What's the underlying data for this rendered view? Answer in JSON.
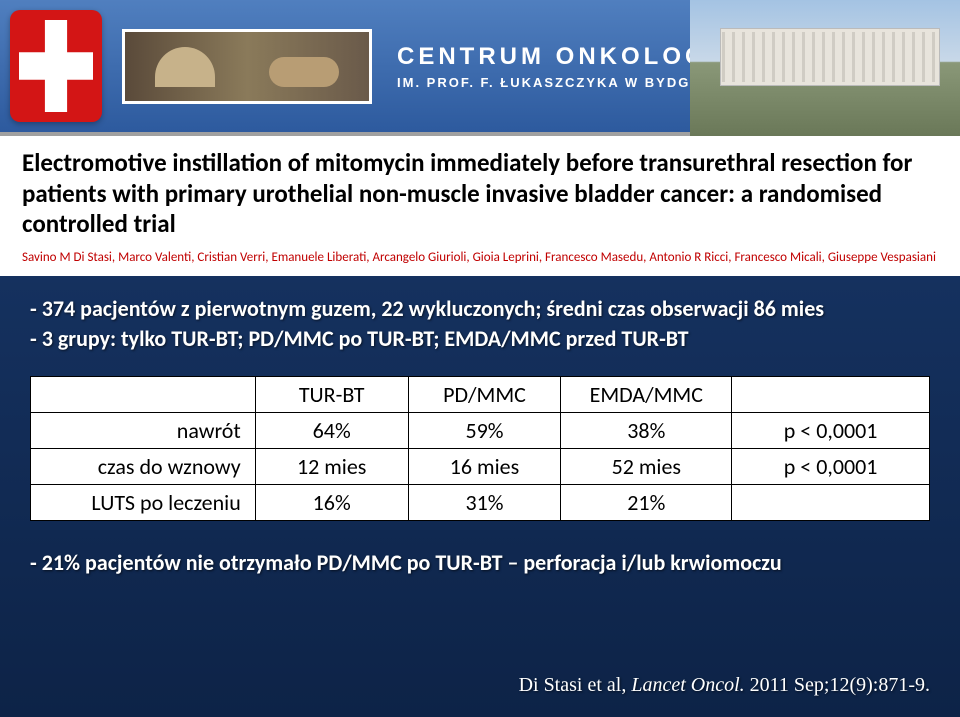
{
  "header": {
    "line1": "CENTRUM ONKOLOGII",
    "line2": "IM. PROF. F. ŁUKASZCZYKA W BYDGOSZCZY"
  },
  "paper": {
    "title": "Electromotive instillation of mitomycin immediately before transurethral resection for patients with primary urothelial non-muscle invasive bladder cancer: a randomised controlled trial",
    "authors": "Savino M Di Stasi, Marco Valenti, Cristian Verri, Emanuele Liberati, Arcangelo Giurioli, Gioia Leprini, Francesco Masedu, Antonio R Ricci, Francesco Micali, Giuseppe Vespasiani"
  },
  "bullets": {
    "top_line1": "- 374 pacjentów z pierwotnym guzem, 22 wykluczonych; średni czas obserwacji 86 mies",
    "top_line2": "- 3 grupy: tylko TUR-BT; PD/MMC po TUR-BT; EMDA/MMC przed TUR-BT",
    "bottom": "- 21% pacjentów nie otrzymało PD/MMC po TUR-BT – perforacja i/lub krwiomoczu"
  },
  "table": {
    "columns": [
      "",
      "TUR-BT",
      "PD/MMC",
      "EMDA/MMC",
      ""
    ],
    "rows": [
      [
        "nawrót",
        "64%",
        "59%",
        "38%",
        "p < 0,0001"
      ],
      [
        "czas do wznowy",
        "12 mies",
        "16 mies",
        "52 mies",
        "p < 0,0001"
      ],
      [
        "LUTS po leczeniu",
        "16%",
        "31%",
        "21%",
        ""
      ]
    ],
    "col_widths": [
      "25%",
      "17%",
      "17%",
      "19%",
      "22%"
    ],
    "header_bg": "#ffffff",
    "cell_bg": "#ffffff",
    "border_color": "#000000",
    "font_size_pt": 17
  },
  "citation": {
    "authors": "Di Stasi et al,",
    "journal": "Lancet Oncol.",
    "details": "2011 Sep;12(9):871-9."
  },
  "colors": {
    "slide_bg_top": "#1a3a6e",
    "slide_bg_bottom": "#0d2347",
    "header_bg_top": "#507fbf",
    "header_bg_bottom": "#2d5a9e",
    "logo_red": "#d31515",
    "authors_red": "#c00000",
    "text_white": "#ffffff"
  }
}
